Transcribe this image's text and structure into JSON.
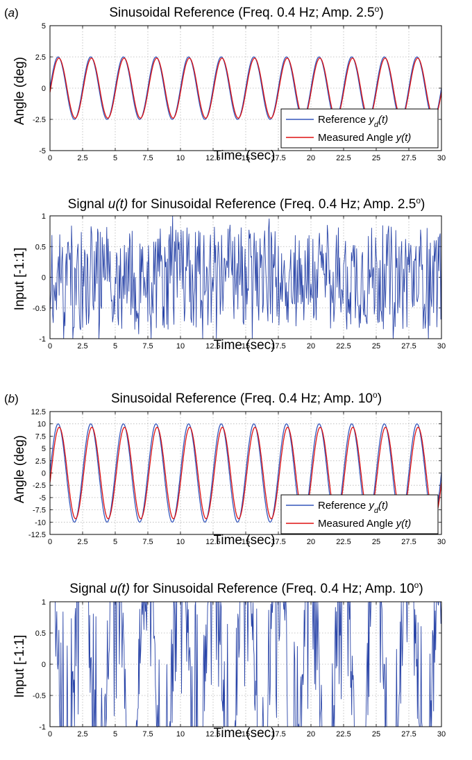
{
  "chart_data": [
    {
      "type": "line",
      "panel_label": "(a)",
      "title": "Sinusoidal Reference (Freq. 0.4 Hz; Amp. 2.5°)",
      "xlabel": "Time (sec)",
      "ylabel": "Angle (deg)",
      "xlim": [
        0,
        30
      ],
      "ylim": [
        -5,
        5
      ],
      "xticks": [
        "0",
        "2.5",
        "5",
        "7.5",
        "10",
        "12.5",
        "15",
        "17.5",
        "20",
        "22.5",
        "25",
        "27.5",
        "30"
      ],
      "yticks": [
        "-5",
        "-2.5",
        "0",
        "2.5",
        "5"
      ],
      "grid": true,
      "legend_position": "bottom-right",
      "series": [
        {
          "name": "Reference y_d(t)",
          "kind": "sine",
          "amplitude": 2.5,
          "frequency_hz": 0.4,
          "phase_deg": 0,
          "color": "#3355bb"
        },
        {
          "name": "Measured Angle y(t)",
          "kind": "sine",
          "amplitude": 2.4,
          "frequency_hz": 0.4,
          "phase_deg": -8,
          "color": "#dd1111"
        }
      ]
    },
    {
      "type": "line",
      "title": "Signal u(t) for Sinusoidal Reference (Freq. 0.4 Hz; Amp. 2.5°)",
      "xlabel": "Time (sec)",
      "ylabel": "Input [-1:1]",
      "xlim": [
        0,
        30
      ],
      "ylim": [
        -1,
        1
      ],
      "xticks": [
        "0",
        "2.5",
        "5",
        "7.5",
        "10",
        "12.5",
        "15",
        "17.5",
        "20",
        "22.5",
        "25",
        "27.5",
        "30"
      ],
      "yticks": [
        "-1",
        "-0.5",
        "0",
        "0.5",
        "1"
      ],
      "grid": true,
      "series": [
        {
          "name": "u(t)",
          "kind": "noise",
          "sample_step_s": 0.05,
          "range": [
            -1,
            1
          ],
          "color": "#2a45a8"
        }
      ]
    },
    {
      "type": "line",
      "panel_label": "(b)",
      "title": "Sinusoidal Reference (Freq. 0.4 Hz; Amp. 10°)",
      "xlabel": "Time (sec)",
      "ylabel": "Angle (deg)",
      "xlim": [
        0,
        30
      ],
      "ylim": [
        -12.5,
        12.5
      ],
      "xticks": [
        "0",
        "2.5",
        "5",
        "7.5",
        "10",
        "12.5",
        "15",
        "17.5",
        "20",
        "22.5",
        "25",
        "27.5",
        "30"
      ],
      "yticks": [
        "-12.5",
        "-10",
        "-7.5",
        "-5",
        "-2.5",
        "0",
        "2.5",
        "5",
        "7.5",
        "10",
        "12.5"
      ],
      "grid": true,
      "legend_position": "bottom-right",
      "series": [
        {
          "name": "Reference y_d(t)",
          "kind": "sine",
          "amplitude": 10,
          "frequency_hz": 0.4,
          "phase_deg": 0,
          "color": "#3355bb"
        },
        {
          "name": "Measured Angle y(t)",
          "kind": "sine",
          "amplitude": 9.3,
          "frequency_hz": 0.4,
          "phase_deg": -12,
          "color": "#dd1111"
        }
      ]
    },
    {
      "type": "line",
      "title": "Signal u(t) for Sinusoidal Reference (Freq. 0.4 Hz; Amp. 10°)",
      "xlabel": "Time (sec)",
      "ylabel": "Input [-1:1]",
      "xlim": [
        0,
        30
      ],
      "ylim": [
        -1,
        1
      ],
      "xticks": [
        "0",
        "2.5",
        "5",
        "7.5",
        "10",
        "12.5",
        "15",
        "17.5",
        "20",
        "22.5",
        "25",
        "27.5",
        "30"
      ],
      "yticks": [
        "-1",
        "-0.5",
        "0",
        "0.5",
        "1"
      ],
      "grid": true,
      "series": [
        {
          "name": "u(t)",
          "kind": "bang-bang",
          "sample_step_s": 0.04,
          "frequency_hz": 0.4,
          "range": [
            -1,
            1
          ],
          "color": "#2a45a8"
        }
      ]
    }
  ],
  "legend": {
    "reference_prefix": "Reference ",
    "reference_var": "y",
    "reference_sub": "d",
    "reference_arg": "(t)",
    "measured_prefix": "Measured Angle ",
    "measured_var": "y(t)"
  },
  "titles": {
    "a_top": "Sinusoidal Reference (Freq. 0.4 Hz; Amp. 2.5",
    "a_bottom_pre": "Signal ",
    "a_bottom_var": "u(t)",
    "a_bottom_post": " for Sinusoidal Reference (Freq. 0.4 Hz; Amp. 2.5",
    "b_top": "Sinusoidal Reference (Freq. 0.4 Hz; Amp. 10",
    "b_bottom_pre": "Signal ",
    "b_bottom_var": "u(t)",
    "b_bottom_post": " for Sinusoidal Reference (Freq. 0.4 Hz; Amp. 10",
    "degree": "o",
    "close": ")"
  },
  "panel_labels": {
    "a_open": "(",
    "a_letter": "a",
    "a_close": ")",
    "b_open": "(",
    "b_letter": "b",
    "b_close": ")"
  }
}
